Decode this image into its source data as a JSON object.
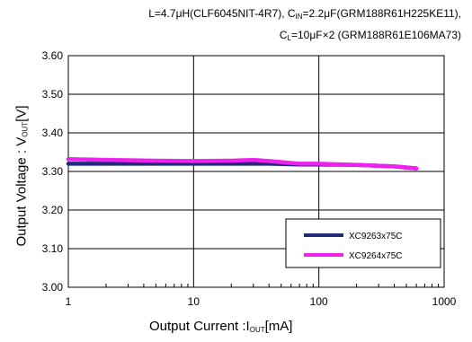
{
  "conditions": {
    "line1_a": "L=4.7",
    "line1_b": "μH(CLF6045NIT-4R7),  C",
    "line1_sub": "IN",
    "line1_c": "=2.2",
    "line1_d": "μF(GRM188R61H225KE11),",
    "line2_a": "C",
    "line2_sub": "L",
    "line2_b": "=10",
    "line2_c": "μF×2 (GRM188R61E106MA73)"
  },
  "chart_data": {
    "type": "line",
    "x_scale": "log",
    "xlim": [
      1,
      1000
    ],
    "ylim": [
      3.0,
      3.6
    ],
    "x_ticks": [
      "1",
      "10",
      "100",
      "1000"
    ],
    "x_tick_values": [
      1,
      10,
      100,
      1000
    ],
    "y_ticks": [
      "3.00",
      "3.10",
      "3.20",
      "3.30",
      "3.40",
      "3.50",
      "3.60"
    ],
    "y_tick_values": [
      3.0,
      3.1,
      3.2,
      3.3,
      3.4,
      3.5,
      3.6
    ],
    "xlabel_main": "Output Current :I",
    "xlabel_sub": "OUT",
    "xlabel_unit": "[mA]",
    "ylabel_main": "Output Voltage : V",
    "ylabel_sub": "OUT",
    "ylabel_unit": "[V]",
    "grid": "major",
    "legend_position": "bottom-right",
    "series": [
      {
        "name": "XC9263x75C",
        "color": "#1f2a7a",
        "x": [
          1,
          2,
          5,
          10,
          20,
          40,
          70,
          100,
          200,
          400,
          600
        ],
        "y": [
          3.32,
          3.32,
          3.32,
          3.32,
          3.32,
          3.32,
          3.318,
          3.318,
          3.317,
          3.313,
          3.308
        ]
      },
      {
        "name": "XC9264x75C",
        "color": "#ee22ee",
        "x": [
          1,
          2,
          5,
          10,
          20,
          30,
          40,
          70,
          100,
          200,
          400,
          600
        ],
        "y": [
          3.332,
          3.33,
          3.328,
          3.327,
          3.328,
          3.33,
          3.327,
          3.32,
          3.32,
          3.317,
          3.313,
          3.308
        ]
      }
    ]
  }
}
